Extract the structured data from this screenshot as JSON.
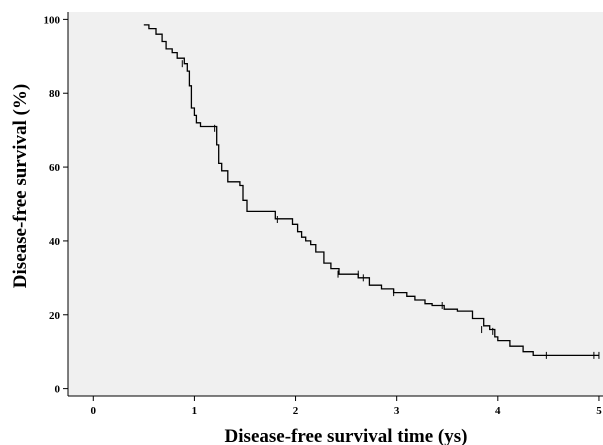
{
  "chart_data": {
    "type": "line",
    "step": true,
    "xlabel": "Disease-free survival time (ys)",
    "ylabel": "Disease-free survival (%)",
    "xlim": [
      -0.25,
      5.05
    ],
    "ylim": [
      -2,
      102
    ],
    "xticks": [
      0,
      1,
      2,
      3,
      4,
      5
    ],
    "yticks": [
      0,
      20,
      40,
      60,
      80,
      100
    ],
    "grid": false,
    "plot_background": "#f0f0f0",
    "line_color": "#000000",
    "series": [
      {
        "points": [
          [
            0.5,
            98.5
          ],
          [
            0.55,
            97.5
          ],
          [
            0.62,
            96
          ],
          [
            0.68,
            94
          ],
          [
            0.72,
            92
          ],
          [
            0.78,
            91
          ],
          [
            0.83,
            89.5
          ],
          [
            0.9,
            88
          ],
          [
            0.93,
            86
          ],
          [
            0.95,
            82
          ],
          [
            0.97,
            76
          ],
          [
            1.0,
            74
          ],
          [
            1.02,
            72
          ],
          [
            1.06,
            71
          ],
          [
            1.22,
            66
          ],
          [
            1.24,
            61
          ],
          [
            1.27,
            59
          ],
          [
            1.33,
            56
          ],
          [
            1.45,
            55
          ],
          [
            1.48,
            51
          ],
          [
            1.52,
            48
          ],
          [
            1.8,
            46
          ],
          [
            1.97,
            44.5
          ],
          [
            2.02,
            42.5
          ],
          [
            2.06,
            41
          ],
          [
            2.1,
            40
          ],
          [
            2.15,
            39
          ],
          [
            2.2,
            37
          ],
          [
            2.28,
            34
          ],
          [
            2.35,
            32.5
          ],
          [
            2.43,
            31
          ],
          [
            2.62,
            30
          ],
          [
            2.73,
            28
          ],
          [
            2.85,
            27
          ],
          [
            2.97,
            26
          ],
          [
            3.1,
            25
          ],
          [
            3.18,
            24
          ],
          [
            3.28,
            23
          ],
          [
            3.35,
            22.5
          ],
          [
            3.47,
            21.5
          ],
          [
            3.6,
            21
          ],
          [
            3.75,
            19
          ],
          [
            3.86,
            17
          ],
          [
            3.92,
            16
          ],
          [
            3.97,
            14
          ],
          [
            4.0,
            13
          ],
          [
            4.12,
            11.5
          ],
          [
            4.25,
            10
          ],
          [
            4.35,
            9
          ],
          [
            5.0,
            9
          ]
        ],
        "censored": [
          [
            0.88,
            88
          ],
          [
            1.2,
            70.5
          ],
          [
            1.82,
            45.8
          ],
          [
            2.42,
            31
          ],
          [
            2.62,
            31
          ],
          [
            2.67,
            30
          ],
          [
            2.97,
            26
          ],
          [
            3.45,
            22.5
          ],
          [
            3.84,
            16
          ],
          [
            3.95,
            15.5
          ],
          [
            4.48,
            9
          ],
          [
            4.95,
            9
          ],
          [
            5.0,
            9
          ]
        ]
      }
    ]
  }
}
